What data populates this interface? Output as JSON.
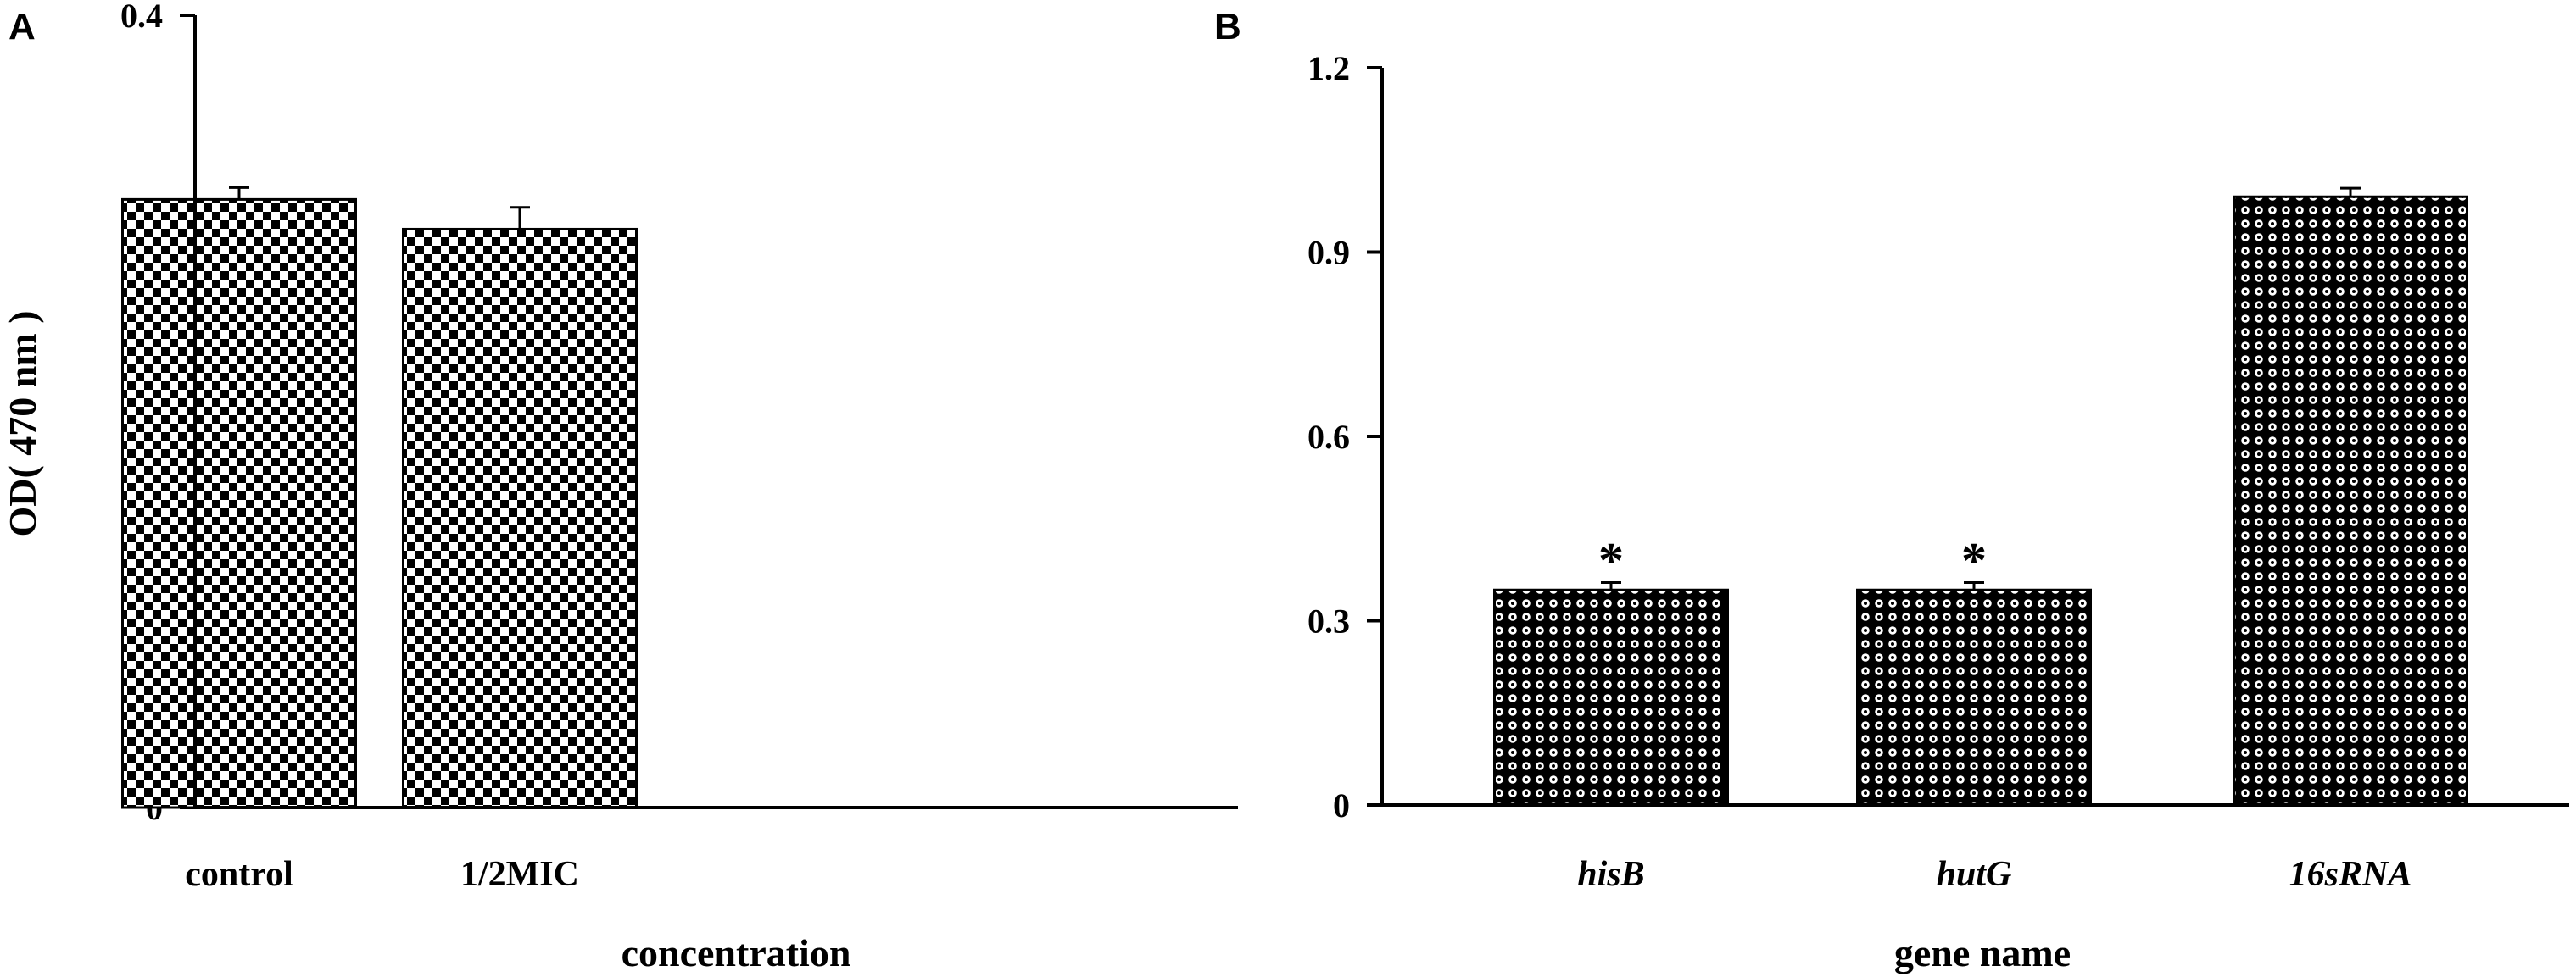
{
  "chart_data": [
    {
      "panel": "A",
      "type": "bar",
      "categories": [
        "control",
        "1/2MIC"
      ],
      "values": [
        0.307,
        0.292
      ],
      "errors": [
        0.006,
        0.011
      ],
      "xlabel": "concentration",
      "ylabel": "OD( 470 nm )",
      "ylim": [
        0,
        0.4
      ],
      "yticks": [
        "0",
        "0.1",
        "0.2",
        "0.3",
        "0.4"
      ],
      "category_italic": false,
      "annotations": [
        "",
        ""
      ],
      "bar_pattern": "checkerboard",
      "grid": false
    },
    {
      "panel": "B",
      "type": "bar",
      "categories": [
        "hisB",
        "hutG",
        "16sRNA"
      ],
      "values": [
        0.35,
        0.35,
        0.99
      ],
      "errors": [
        0.012,
        0.012,
        0.014
      ],
      "xlabel": "gene name",
      "ylabel": "",
      "ylim": [
        0,
        1.2
      ],
      "yticks": [
        "0",
        "0.3",
        "0.6",
        "0.9",
        "1.2"
      ],
      "category_italic": true,
      "annotations": [
        "*",
        "*",
        ""
      ],
      "bar_pattern": "dotted",
      "grid": false
    }
  ],
  "colors": {
    "axis": "#000000",
    "bar_fill": "#000000",
    "background": "#ffffff"
  }
}
